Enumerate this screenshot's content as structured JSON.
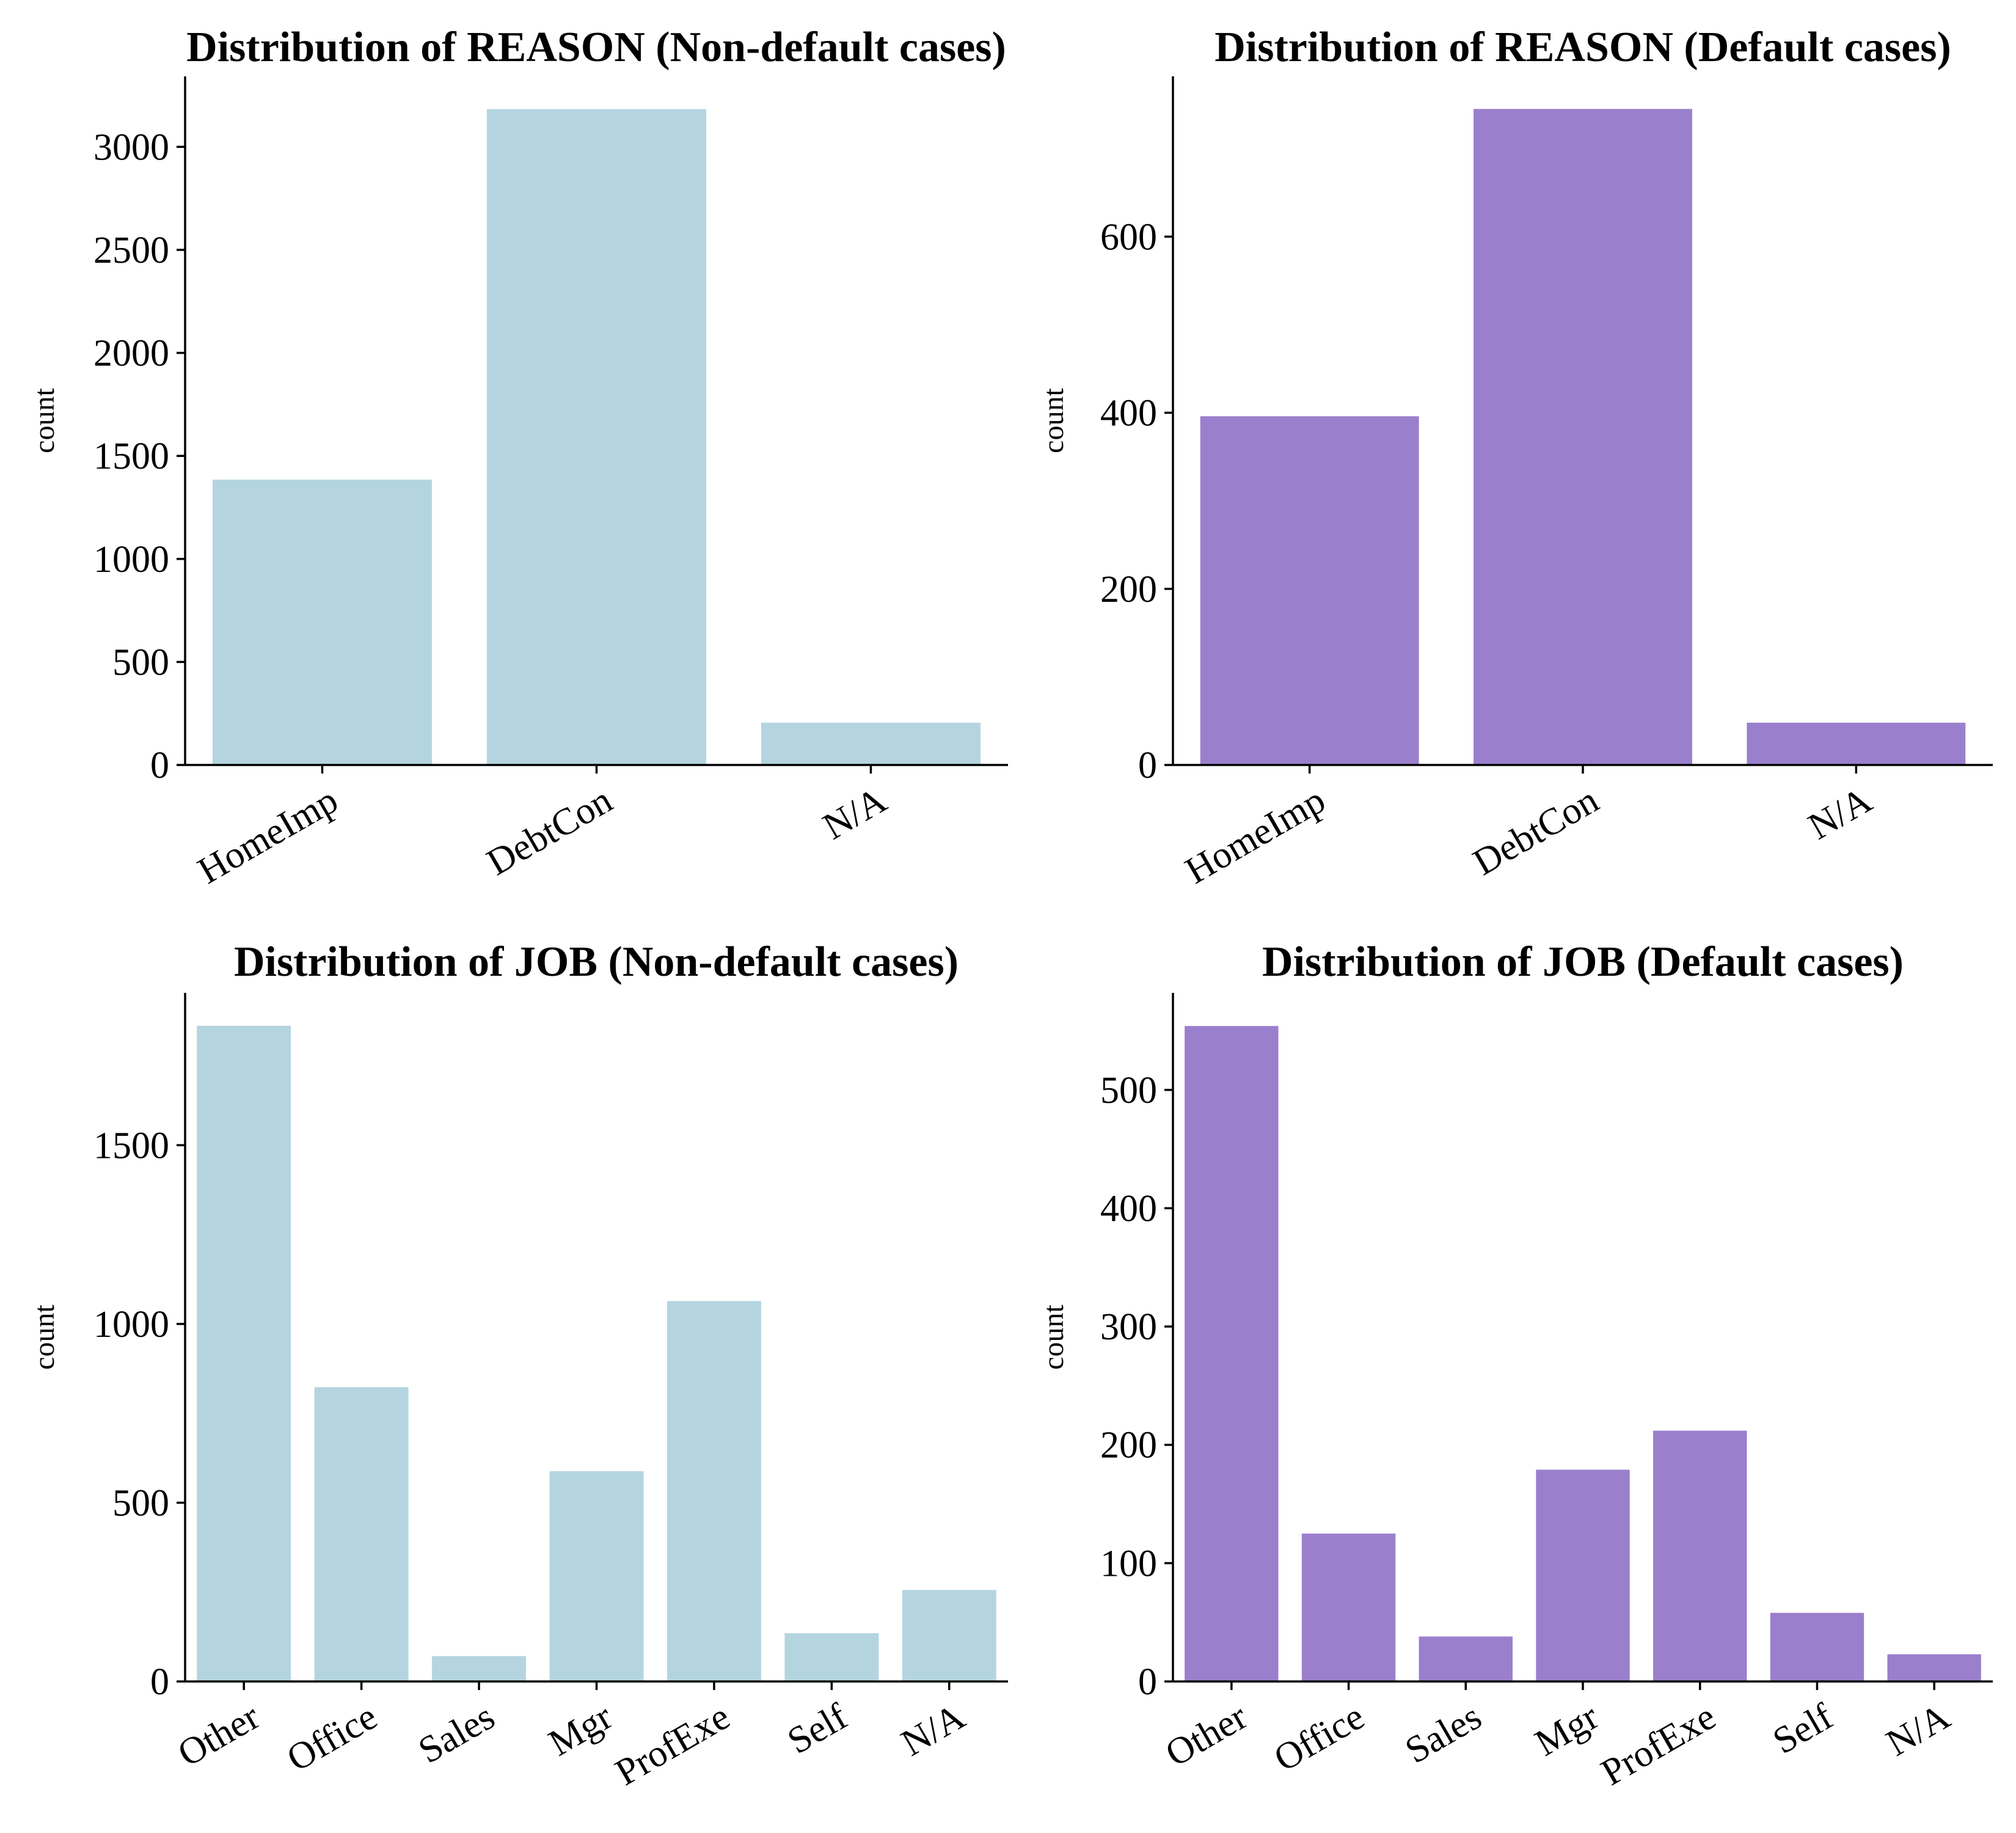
{
  "chart_data": [
    {
      "type": "bar",
      "title": "Distribution of REASON (Non-default cases)",
      "xlabel": "",
      "ylabel": "count",
      "categories": [
        "HomeImp",
        "DebtCon",
        "N/A"
      ],
      "values": [
        1385,
        3183,
        205
      ],
      "ylim": [
        0,
        3342
      ],
      "yticks": [
        "0",
        "500",
        "1000",
        "1500",
        "2000",
        "2500",
        "3000"
      ],
      "color": "#b4d5e0",
      "grid": false,
      "legend": "none"
    },
    {
      "type": "bar",
      "title": "Distribution of REASON (Default cases)",
      "xlabel": "",
      "ylabel": "count",
      "categories": [
        "HomeImp",
        "DebtCon",
        "N/A"
      ],
      "values": [
        396,
        745,
        48
      ],
      "ylim": [
        0,
        782
      ],
      "yticks": [
        "0",
        "200",
        "400",
        "600"
      ],
      "color": "#9a7fcd",
      "grid": false,
      "legend": "none"
    },
    {
      "type": "bar",
      "title": "Distribution of JOB (Non-default cases)",
      "xlabel": "",
      "ylabel": "count",
      "categories": [
        "Other",
        "Office",
        "Sales",
        "Mgr",
        "ProfExe",
        "Self",
        "N/A"
      ],
      "values": [
        1834,
        823,
        71,
        588,
        1064,
        135,
        256
      ],
      "ylim": [
        0,
        1926
      ],
      "yticks": [
        "0",
        "500",
        "1000",
        "1500"
      ],
      "color": "#b4d5e0",
      "grid": false,
      "legend": "none"
    },
    {
      "type": "bar",
      "title": "Distribution of JOB (Default cases)",
      "xlabel": "",
      "ylabel": "count",
      "categories": [
        "Other",
        "Office",
        "Sales",
        "Mgr",
        "ProfExe",
        "Self",
        "N/A"
      ],
      "values": [
        554,
        125,
        38,
        179,
        212,
        58,
        23
      ],
      "ylim": [
        0,
        582
      ],
      "yticks": [
        "0",
        "100",
        "200",
        "300",
        "400",
        "500"
      ],
      "color": "#9a7fcd",
      "grid": false,
      "legend": "none"
    }
  ]
}
